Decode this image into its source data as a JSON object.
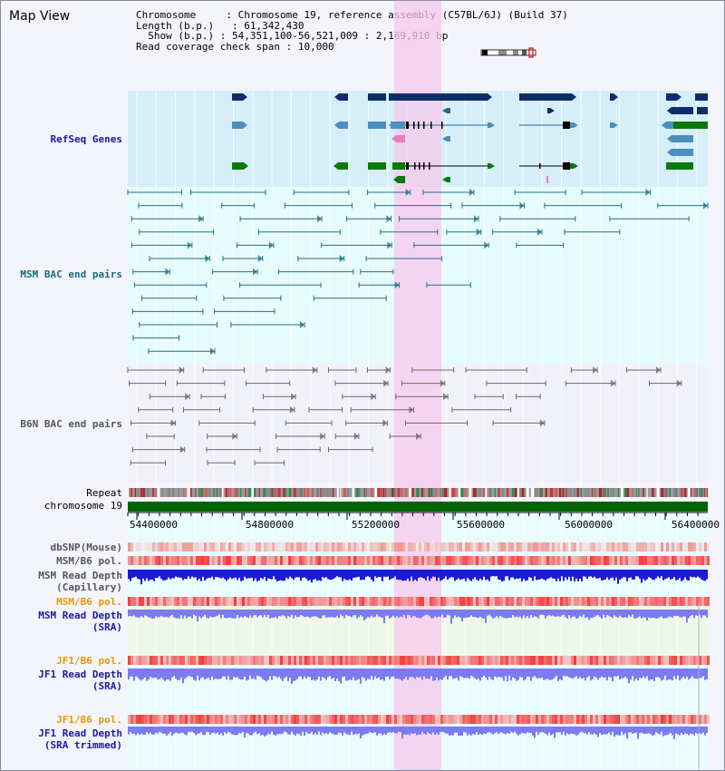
{
  "page": {
    "title": "Map View"
  },
  "info": {
    "chromosome_label": "Chromosome",
    "chromosome_value": "Chromosome 19, reference assembly (C57BL/6J) (Build 37)",
    "length_label": "Length (b.p.)",
    "length_value": "61,342,430",
    "show_label": "Show (b.p.)",
    "show_value": "54,351,100-56,521,009 : 2,169,910 bp",
    "coverage_label": "Read coverage check span",
    "coverage_value": "10,000"
  },
  "tracks": {
    "refseq": "RefSeq Genes",
    "msm_bac": "MSM BAC end pairs",
    "b6n_bac": "B6N BAC end pairs",
    "repeat": "Repeat",
    "chromosome": "chromosome 19",
    "dbsnp": "dbSNP(Mouse)",
    "msm_b6_pol": "MSM/B6 pol.",
    "msm_read_depth_cap_1": "MSM Read Depth",
    "msm_read_depth_cap_2": "(Capillary)",
    "msm_b6_pol_2": "MSM/B6 pol.",
    "msm_read_depth_sra_1": "MSM Read Depth",
    "msm_read_depth_sra_2": "(SRA)",
    "jf1_b6_pol": "JF1/B6 pol.",
    "jf1_read_depth_sra_1": "JF1 Read Depth",
    "jf1_read_depth_sra_2": "(SRA)",
    "jf1_b6_pol_2": "JF1/B6 pol.",
    "jf1_read_depth_trim_1": "JF1 Read Depth",
    "jf1_read_depth_trim_2": "(SRA trimmed)"
  },
  "axis": {
    "ticks": [
      "54400000",
      "54800000",
      "55200000",
      "55600000",
      "56000000",
      "56400000"
    ]
  },
  "colors": {
    "label_blue": "#1a1aa6",
    "label_teal": "#1a6a7a",
    "label_gray": "#555566",
    "label_orange": "#e59a00",
    "highlight": "#f7c8ee",
    "refseq_bg": "#d6eef8",
    "bac_bg": "#e6fbfb",
    "gene_navy": "#0d2d6b",
    "gene_mid": "#4a8fc0",
    "gene_green": "#0a7a0a",
    "chromosome_green": "#006400",
    "depth_blue": "#1a1ad9",
    "depth_light": "#7b7bf2"
  }
}
